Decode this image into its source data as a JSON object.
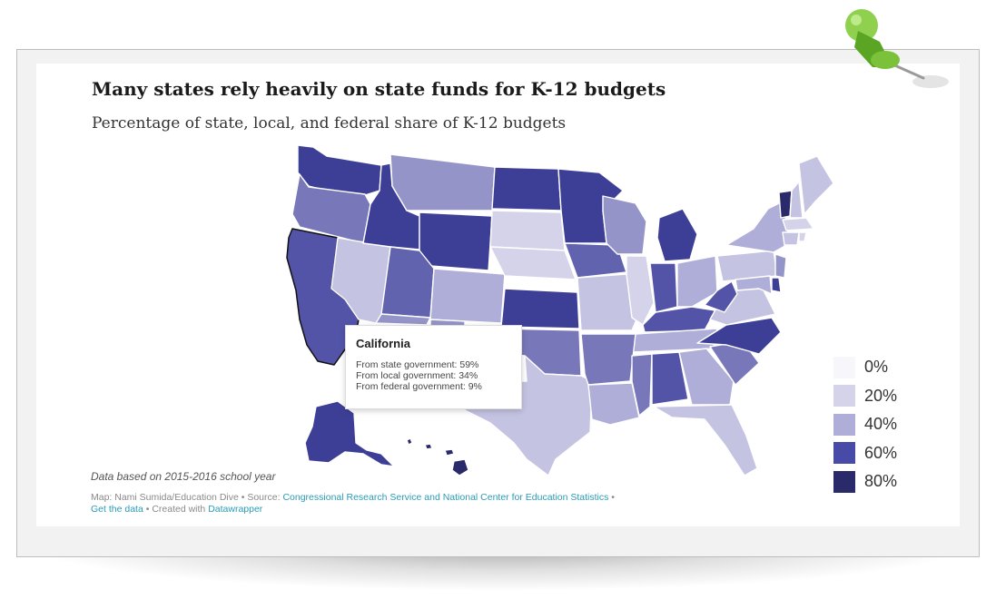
{
  "title": "Many states rely heavily on state funds for K-12 budgets",
  "subtitle": "Percentage of state, local, and federal share of K-12 budgets",
  "tooltip": {
    "state": "California",
    "line_state": "From state government: 59%",
    "line_local": "From local government: 34%",
    "line_federal": "From federal government:   9%"
  },
  "legend": [
    {
      "label": "0%",
      "color": "#f6f6fb"
    },
    {
      "label": "20%",
      "color": "#d4d3ea"
    },
    {
      "label": "40%",
      "color": "#aeaed8"
    },
    {
      "label": "60%",
      "color": "#474aa6"
    },
    {
      "label": "80%",
      "color": "#2a2a6a"
    }
  ],
  "note": "Data based on 2015-2016 school year",
  "credits": {
    "map_by": "Map: Nami Sumida/Education Dive",
    "source_label": "Source:",
    "source_link": "Congressional Research Service and National Center for Education Statistics",
    "get_data": "Get the data",
    "created_with": "Created with",
    "tool": "Datawrapper"
  },
  "colors": {
    "c80": "#2a2a6a",
    "c60": "#3d3f96",
    "c55": "#5354a8",
    "c50": "#6263af",
    "c45": "#7877b9",
    "c40": "#9494c8",
    "c35": "#aeaed8",
    "c30": "#c4c3e2",
    "c25": "#d4d3ea"
  }
}
